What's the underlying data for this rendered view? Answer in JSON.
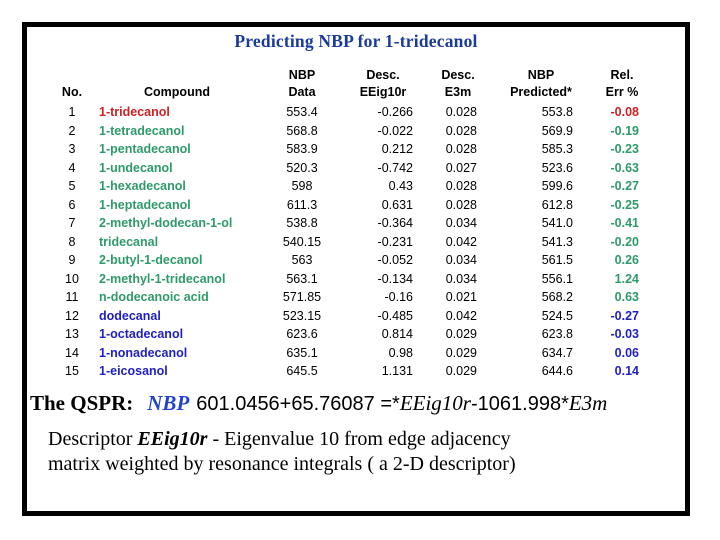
{
  "slide": {
    "title": "Predicting NBP for 1-tridecanol"
  },
  "table": {
    "headers": [
      {
        "lines": [
          "No."
        ]
      },
      {
        "lines": [
          "Compound"
        ]
      },
      {
        "lines": [
          "NBP",
          "Data"
        ]
      },
      {
        "lines": [
          "Desc.",
          "EEig10r"
        ]
      },
      {
        "lines": [
          "Desc.",
          "E3m"
        ]
      },
      {
        "lines": [
          "NBP",
          "Predicted*"
        ]
      },
      {
        "lines": [
          "Rel.",
          "Err %"
        ]
      }
    ],
    "rows": [
      {
        "no": "1",
        "compound": "1-tridecanol",
        "nbp": "553.4",
        "eeig": "-0.266",
        "e3m": "0.028",
        "pred": "553.8",
        "err": "-0.08",
        "color": "red"
      },
      {
        "no": "2",
        "compound": "1-tetradecanol",
        "nbp": "568.8",
        "eeig": "-0.022",
        "e3m": "0.028",
        "pred": "569.9",
        "err": "-0.19",
        "color": "green"
      },
      {
        "no": "3",
        "compound": "1-pentadecanol",
        "nbp": "583.9",
        "eeig": "0.212",
        "e3m": "0.028",
        "pred": "585.3",
        "err": "-0.23",
        "color": "green"
      },
      {
        "no": "4",
        "compound": "1-undecanol",
        "nbp": "520.3",
        "eeig": "-0.742",
        "e3m": "0.027",
        "pred": "523.6",
        "err": "-0.63",
        "color": "green"
      },
      {
        "no": "5",
        "compound": "1-hexadecanol",
        "nbp": "598",
        "eeig": "0.43",
        "e3m": "0.028",
        "pred": "599.6",
        "err": "-0.27",
        "color": "green"
      },
      {
        "no": "6",
        "compound": "1-heptadecanol",
        "nbp": "611.3",
        "eeig": "0.631",
        "e3m": "0.028",
        "pred": "612.8",
        "err": "-0.25",
        "color": "green"
      },
      {
        "no": "7",
        "compound": "2-methyl-dodecan-1-ol",
        "nbp": "538.8",
        "eeig": "-0.364",
        "e3m": "0.034",
        "pred": "541.0",
        "err": "-0.41",
        "color": "green"
      },
      {
        "no": "8",
        "compound": "tridecanal",
        "nbp": "540.15",
        "eeig": "-0.231",
        "e3m": "0.042",
        "pred": "541.3",
        "err": "-0.20",
        "color": "green"
      },
      {
        "no": "9",
        "compound": "2-butyl-1-decanol",
        "nbp": "563",
        "eeig": "-0.052",
        "e3m": "0.034",
        "pred": "561.5",
        "err": "0.26",
        "color": "green"
      },
      {
        "no": "10",
        "compound": "2-methyl-1-tridecanol",
        "nbp": "563.1",
        "eeig": "-0.134",
        "e3m": "0.034",
        "pred": "556.1",
        "err": "1.24",
        "color": "green"
      },
      {
        "no": "11",
        "compound": "n-dodecanoic acid",
        "nbp": "571.85",
        "eeig": "-0.16",
        "e3m": "0.021",
        "pred": "568.2",
        "err": "0.63",
        "color": "green"
      },
      {
        "no": "12",
        "compound": "dodecanal",
        "nbp": "523.15",
        "eeig": "-0.485",
        "e3m": "0.042",
        "pred": "524.5",
        "err": "-0.27",
        "color": "blue"
      },
      {
        "no": "13",
        "compound": "1-octadecanol",
        "nbp": "623.6",
        "eeig": "0.814",
        "e3m": "0.029",
        "pred": "623.8",
        "err": "-0.03",
        "color": "blue"
      },
      {
        "no": "14",
        "compound": "1-nonadecanol",
        "nbp": "635.1",
        "eeig": "0.98",
        "e3m": "0.029",
        "pred": "634.7",
        "err": "0.06",
        "color": "blue"
      },
      {
        "no": "15",
        "compound": "1-eicosanol",
        "nbp": "645.5",
        "eeig": "1.131",
        "e3m": "0.029",
        "pred": "644.6",
        "err": "0.14",
        "color": "blue"
      }
    ]
  },
  "footer": {
    "qspr_label": "The QSPR:",
    "equation": {
      "nbp": "NBP",
      "part1": "601.0456+65.76087 =*",
      "var1": "EEig10r",
      "part2": "-1061.998*",
      "var2": "E3m"
    },
    "descriptor": {
      "prefix": "Descriptor ",
      "var": "EEig10r",
      "line1_rest": " - Eigenvalue 10 from edge adjacency",
      "line2": "matrix weighted by resonance integrals ( a 2-D descriptor)"
    }
  },
  "colors": {
    "title_blue": "#1a3a9c",
    "equation_nbp_blue": "#2244cc",
    "target_red": "#cc2222",
    "training_green": "#2f9a6a",
    "test_blue": "#2121c0"
  }
}
